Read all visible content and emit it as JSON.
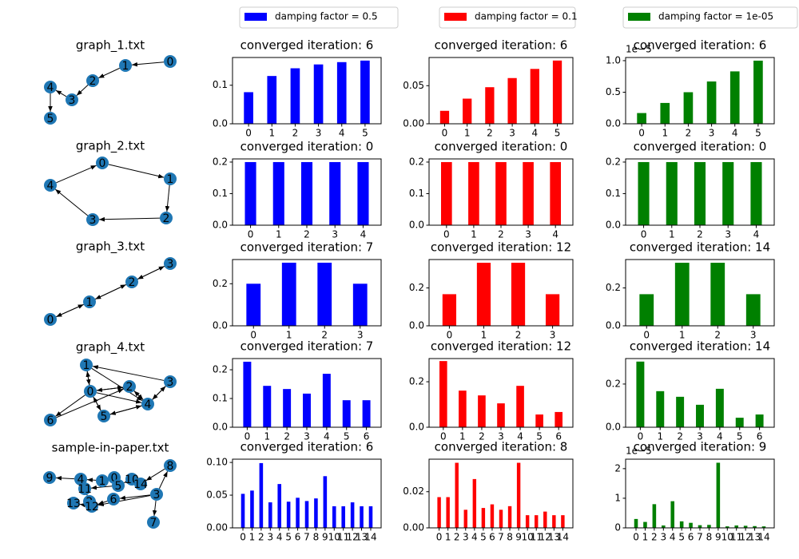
{
  "legend": [
    {
      "label": "damping factor = 0.5",
      "color": "#0000ff"
    },
    {
      "label": "damping factor = 0.1",
      "color": "#ff0000"
    },
    {
      "label": "damping factor = 1e-05",
      "color": "#008000"
    }
  ],
  "graphs": [
    {
      "title": "graph_1.txt",
      "nodes": [
        "0",
        "1",
        "2",
        "3",
        "4",
        "5"
      ],
      "edges": [
        [
          0,
          1
        ],
        [
          1,
          2
        ],
        [
          2,
          3
        ],
        [
          3,
          4
        ],
        [
          4,
          5
        ]
      ]
    },
    {
      "title": "graph_2.txt",
      "nodes": [
        "0",
        "1",
        "2",
        "3",
        "4"
      ],
      "edges": [
        [
          0,
          1
        ],
        [
          1,
          2
        ],
        [
          2,
          3
        ],
        [
          3,
          4
        ],
        [
          4,
          0
        ]
      ]
    },
    {
      "title": "graph_3.txt",
      "nodes": [
        "0",
        "1",
        "2",
        "3"
      ],
      "edges": [
        [
          0,
          1
        ],
        [
          1,
          0
        ],
        [
          1,
          2
        ],
        [
          2,
          1
        ],
        [
          2,
          3
        ],
        [
          3,
          2
        ]
      ]
    },
    {
      "title": "graph_4.txt",
      "nodes": [
        "0",
        "1",
        "2",
        "3",
        "4",
        "5",
        "6"
      ],
      "edges": [
        [
          1,
          0
        ],
        [
          0,
          1
        ],
        [
          0,
          2
        ],
        [
          2,
          0
        ],
        [
          3,
          1
        ],
        [
          1,
          4
        ],
        [
          2,
          4
        ],
        [
          4,
          2
        ],
        [
          3,
          4
        ],
        [
          4,
          3
        ],
        [
          0,
          4
        ],
        [
          4,
          5
        ],
        [
          5,
          4
        ],
        [
          0,
          5
        ],
        [
          5,
          0
        ],
        [
          6,
          2
        ],
        [
          0,
          6
        ]
      ]
    },
    {
      "title": "sample-in-paper.txt",
      "nodes": [
        "0",
        "1",
        "2",
        "3",
        "4",
        "5",
        "6",
        "7",
        "8",
        "9",
        "10",
        "11",
        "12",
        "13",
        "14"
      ],
      "edges": [
        [
          3,
          7
        ],
        [
          3,
          8
        ],
        [
          8,
          14
        ],
        [
          3,
          6
        ],
        [
          6,
          12
        ],
        [
          12,
          13
        ],
        [
          4,
          9
        ],
        [
          1,
          4
        ],
        [
          0,
          1
        ],
        [
          10,
          5
        ],
        [
          5,
          11
        ],
        [
          14,
          10
        ],
        [
          11,
          2
        ],
        [
          2,
          12
        ],
        [
          3,
          12
        ]
      ]
    }
  ],
  "chart_data": [
    {
      "type": "bar",
      "title": "converged iteration: 6",
      "categories": [
        "0",
        "1",
        "2",
        "3",
        "4",
        "5"
      ],
      "values": [
        0.082,
        0.124,
        0.144,
        0.154,
        0.16,
        0.164
      ],
      "color": "#0000ff",
      "ylim": [
        0,
        0.172
      ],
      "yticks": [
        {
          "value": 0,
          "label": "0.0"
        },
        0.1
      ]
    },
    {
      "type": "bar",
      "title": "converged iteration: 6",
      "categories": [
        "0",
        "1",
        "2",
        "3",
        "4",
        "5"
      ],
      "values": [
        0.017,
        0.033,
        0.048,
        0.06,
        0.072,
        0.083
      ],
      "color": "#ff0000",
      "ylim": [
        0,
        0.087
      ],
      "yticks": [
        {
          "value": 0,
          "label": "0.00"
        },
        0.05
      ]
    },
    {
      "type": "bar",
      "title": "converged iteration: 6",
      "categories": [
        "0",
        "1",
        "2",
        "3",
        "4",
        "5"
      ],
      "values": [
        0.17,
        0.33,
        0.5,
        0.67,
        0.83,
        1.0
      ],
      "color": "#008000",
      "ylim": [
        0,
        1.05
      ],
      "yticks": [
        {
          "value": 0,
          "label": "0.0"
        },
        0.5,
        {
          "value": 1,
          "label": "1.0"
        }
      ],
      "offset_label": "1e−5"
    },
    {
      "type": "bar",
      "title": "converged iteration: 0",
      "categories": [
        "0",
        "1",
        "2",
        "3",
        "4"
      ],
      "values": [
        0.2,
        0.2,
        0.2,
        0.2,
        0.2
      ],
      "color": "#0000ff",
      "ylim": [
        0,
        0.21
      ],
      "yticks": [
        {
          "value": 0,
          "label": "0.0"
        },
        0.1,
        0.2
      ]
    },
    {
      "type": "bar",
      "title": "converged iteration: 0",
      "categories": [
        "0",
        "1",
        "2",
        "3",
        "4"
      ],
      "values": [
        0.2,
        0.2,
        0.2,
        0.2,
        0.2
      ],
      "color": "#ff0000",
      "ylim": [
        0,
        0.21
      ],
      "yticks": [
        {
          "value": 0,
          "label": "0.0"
        },
        0.1,
        0.2
      ]
    },
    {
      "type": "bar",
      "title": "converged iteration: 0",
      "categories": [
        "0",
        "1",
        "2",
        "3",
        "4"
      ],
      "values": [
        0.2,
        0.2,
        0.2,
        0.2,
        0.2
      ],
      "color": "#008000",
      "ylim": [
        0,
        0.21
      ],
      "yticks": [
        {
          "value": 0,
          "label": "0.0"
        },
        0.1,
        0.2
      ]
    },
    {
      "type": "bar",
      "title": "converged iteration: 7",
      "categories": [
        "0",
        "1",
        "2",
        "3"
      ],
      "values": [
        0.2,
        0.3,
        0.3,
        0.2
      ],
      "color": "#0000ff",
      "ylim": [
        0,
        0.315
      ],
      "yticks": [
        {
          "value": 0,
          "label": "0.0"
        },
        0.2
      ]
    },
    {
      "type": "bar",
      "title": "converged iteration: 12",
      "categories": [
        "0",
        "1",
        "2",
        "3"
      ],
      "values": [
        0.167,
        0.333,
        0.333,
        0.167
      ],
      "color": "#ff0000",
      "ylim": [
        0,
        0.35
      ],
      "yticks": [
        {
          "value": 0,
          "label": "0.0"
        },
        0.2
      ]
    },
    {
      "type": "bar",
      "title": "converged iteration: 14",
      "categories": [
        "0",
        "1",
        "2",
        "3"
      ],
      "values": [
        0.167,
        0.333,
        0.333,
        0.167
      ],
      "color": "#008000",
      "ylim": [
        0,
        0.35
      ],
      "yticks": [
        {
          "value": 0,
          "label": "0.0"
        },
        0.2
      ]
    },
    {
      "type": "bar",
      "title": "converged iteration: 7",
      "categories": [
        "0",
        "1",
        "2",
        "3",
        "4",
        "5",
        "6"
      ],
      "values": [
        0.228,
        0.144,
        0.133,
        0.117,
        0.186,
        0.094,
        0.094
      ],
      "color": "#0000ff",
      "ylim": [
        0,
        0.239
      ],
      "yticks": [
        {
          "value": 0,
          "label": "0.0"
        },
        0.1,
        0.2
      ]
    },
    {
      "type": "bar",
      "title": "converged iteration: 12",
      "categories": [
        "0",
        "1",
        "2",
        "3",
        "4",
        "5",
        "6"
      ],
      "values": [
        0.291,
        0.161,
        0.14,
        0.105,
        0.182,
        0.056,
        0.067
      ],
      "color": "#ff0000",
      "ylim": [
        0,
        0.302
      ],
      "yticks": [
        {
          "value": 0,
          "label": "0.0"
        },
        0.2
      ]
    },
    {
      "type": "bar",
      "title": "converged iteration: 14",
      "categories": [
        "0",
        "1",
        "2",
        "3",
        "4",
        "5",
        "6"
      ],
      "values": [
        0.304,
        0.167,
        0.141,
        0.104,
        0.178,
        0.044,
        0.059
      ],
      "color": "#008000",
      "ylim": [
        0,
        0.318
      ],
      "yticks": [
        {
          "value": 0,
          "label": "0.0"
        },
        0.2
      ]
    },
    {
      "type": "bar",
      "title": "converged iteration: 6",
      "categories": [
        "0",
        "1",
        "2",
        "3",
        "4",
        "5",
        "6",
        "7",
        "8",
        "9",
        "10",
        "11",
        "12",
        "13",
        "14"
      ],
      "values": [
        0.052,
        0.057,
        0.099,
        0.039,
        0.067,
        0.04,
        0.046,
        0.041,
        0.045,
        0.079,
        0.033,
        0.033,
        0.039,
        0.033,
        0.033
      ],
      "color": "#0000ff",
      "ylim": [
        0,
        0.105
      ],
      "yticks": [
        {
          "value": 0,
          "label": "0.00"
        },
        0.05,
        {
          "value": 0.1,
          "label": "0.10"
        }
      ]
    },
    {
      "type": "bar",
      "title": "converged iteration: 8",
      "categories": [
        "0",
        "1",
        "2",
        "3",
        "4",
        "5",
        "6",
        "7",
        "8",
        "9",
        "10",
        "11",
        "12",
        "13",
        "14"
      ],
      "values": [
        0.017,
        0.017,
        0.036,
        0.01,
        0.027,
        0.011,
        0.013,
        0.01,
        0.012,
        0.036,
        0.007,
        0.007,
        0.009,
        0.007,
        0.007
      ],
      "color": "#ff0000",
      "ylim": [
        0,
        0.038
      ],
      "yticks": [
        {
          "value": 0,
          "label": "0.00"
        },
        0.02
      ]
    },
    {
      "type": "bar",
      "title": "converged iteration: 9",
      "categories": [
        "0",
        "1",
        "2",
        "3",
        "4",
        "5",
        "6",
        "7",
        "8",
        "9",
        "10",
        "11",
        "12",
        "13",
        "14"
      ],
      "values": [
        0.3,
        0.2,
        0.8,
        0.08,
        0.9,
        0.22,
        0.17,
        0.09,
        0.1,
        2.2,
        0.05,
        0.08,
        0.07,
        0.06,
        0.05
      ],
      "color": "#008000",
      "ylim": [
        0,
        2.32
      ],
      "yticks": [
        0,
        1,
        2
      ],
      "offset_label": "1e−5"
    }
  ]
}
